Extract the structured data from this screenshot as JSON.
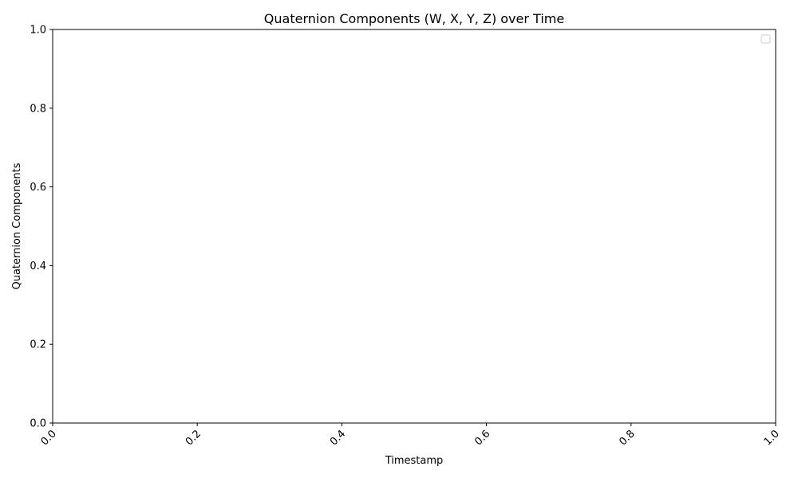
{
  "chart_data": {
    "type": "line",
    "title": "Quaternion Components (W, X, Y, Z) over Time",
    "xlabel": "Timestamp",
    "ylabel": "Quaternion Components",
    "xlim": [
      0.0,
      1.0
    ],
    "ylim": [
      0.0,
      1.0
    ],
    "x_ticks": [
      "0.0",
      "0.2",
      "0.4",
      "0.6",
      "0.8",
      "1.0"
    ],
    "y_ticks": [
      "0.0",
      "0.2",
      "0.4",
      "0.6",
      "0.8",
      "1.0"
    ],
    "x_tick_rotation": "45deg",
    "series": [],
    "legend": {
      "position": "top-right",
      "entries": []
    },
    "grid": false
  }
}
